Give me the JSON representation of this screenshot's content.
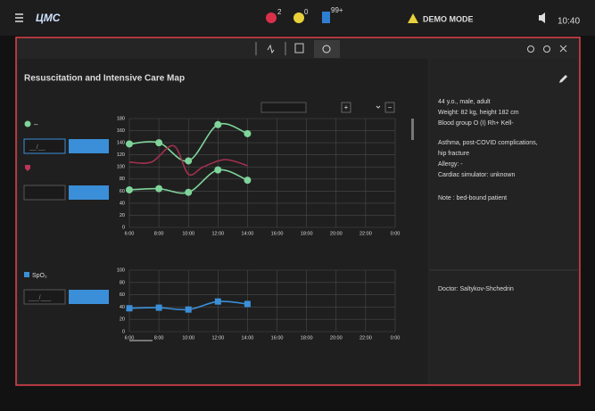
{
  "topbar": {
    "logo": "ЦМС",
    "alerts": [
      2,
      0,
      "99+"
    ],
    "mode": "DEMO MODE",
    "time": "10:40"
  },
  "panel": {
    "title": "Resuscitation and Intensive Care Map"
  },
  "patient": {
    "lines": [
      "44 y.o., male, adult",
      "Weight: 82 kg, height 182 cm",
      "Blood group O (I) Rh+ Kell-",
      "Asthma, post-COVID complications,",
      "hip fracture",
      "Allergy: -",
      "Cardiac simulator: unknown"
    ],
    "note": "Note : bed-bound patient",
    "doctor": "Doctor: Saltykov-Shchedrin"
  },
  "legend": {
    "first_label": "–",
    "input_1": "__/__",
    "input_3": "___/___",
    "plus": "+",
    "minus": "−"
  },
  "chart_data": [
    {
      "type": "line",
      "xlim": [
        6,
        24
      ],
      "xticks": [
        {
          "value": 6,
          "label": "6:00"
        },
        {
          "value": 8,
          "label": "8:00"
        },
        {
          "value": 10,
          "label": "10:00"
        },
        {
          "value": 12,
          "label": "12:00"
        },
        {
          "value": 14,
          "label": "14:00"
        },
        {
          "value": 16,
          "label": "16:00"
        },
        {
          "value": 18,
          "label": "18:00"
        },
        {
          "value": 20,
          "label": "20:00"
        },
        {
          "value": 22,
          "label": "22:00"
        },
        {
          "value": 24,
          "label": "0:00"
        }
      ],
      "ylim": [
        0,
        180
      ],
      "yticks": [
        0,
        20,
        40,
        60,
        80,
        100,
        120,
        140,
        160,
        180
      ],
      "grid": true,
      "series": [
        {
          "color": "#7fd49a",
          "marker": "circle",
          "x": [
            6,
            8,
            10,
            12,
            14
          ],
          "values": [
            138,
            140,
            110,
            170,
            155
          ]
        },
        {
          "color": "#7fd49a",
          "marker": "circle",
          "x": [
            6,
            8,
            10,
            12,
            14
          ],
          "values": [
            62,
            64,
            58,
            95,
            78
          ]
        },
        {
          "color": "#a3304f",
          "marker": "none",
          "x": [
            6,
            7.5,
            9,
            10,
            11,
            12.5,
            14
          ],
          "values": [
            108,
            108,
            135,
            88,
            100,
            112,
            102
          ]
        }
      ]
    },
    {
      "type": "line",
      "xlim": [
        6,
        24
      ],
      "xticks": [
        {
          "value": 6,
          "label": "6:00"
        },
        {
          "value": 8,
          "label": "8:00"
        },
        {
          "value": 10,
          "label": "10:00"
        },
        {
          "value": 12,
          "label": "12:00"
        },
        {
          "value": 14,
          "label": "14:00"
        },
        {
          "value": 16,
          "label": "16:00"
        },
        {
          "value": 18,
          "label": "18:00"
        },
        {
          "value": 20,
          "label": "20:00"
        },
        {
          "value": 22,
          "label": "22:00"
        },
        {
          "value": 24,
          "label": "0:00"
        }
      ],
      "ylim": [
        0,
        100
      ],
      "yticks": [
        0,
        20,
        40,
        60,
        80,
        100
      ],
      "grid": true,
      "series": [
        {
          "name": "SpO₂",
          "color": "#3b8fd8",
          "marker": "square",
          "x": [
            6,
            8,
            10,
            12,
            14
          ],
          "values": [
            38,
            39,
            36,
            49,
            45
          ]
        }
      ]
    }
  ]
}
